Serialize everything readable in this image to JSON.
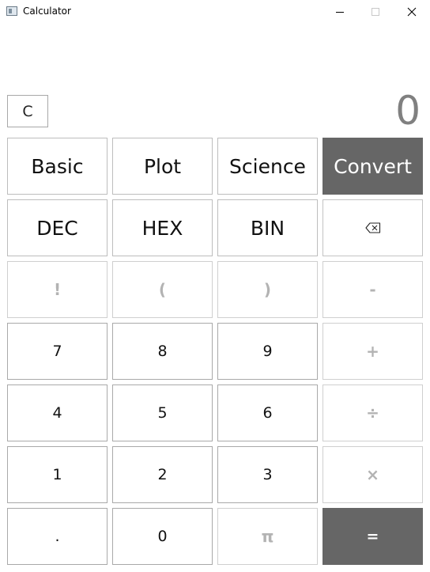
{
  "window": {
    "title": "Calculator",
    "icon": "calculator-app-icon",
    "controls": [
      "minimize-icon",
      "maximize-icon",
      "close-icon"
    ]
  },
  "display": {
    "clear_label": "C",
    "value": "0"
  },
  "modes": [
    {
      "label": "Basic",
      "selected": false
    },
    {
      "label": "Plot",
      "selected": false
    },
    {
      "label": "Science",
      "selected": false
    },
    {
      "label": "Convert",
      "selected": true
    }
  ],
  "bases": [
    {
      "label": "DEC"
    },
    {
      "label": "HEX"
    },
    {
      "label": "BIN"
    }
  ],
  "backspace": {
    "icon": "backspace-icon"
  },
  "ops": {
    "factorial": "!",
    "open_paren": "(",
    "close_paren": ")",
    "minus": "-",
    "plus": "+",
    "divide": "÷",
    "multiply": "×",
    "pi": "π",
    "equals": "=",
    "decimal": "."
  },
  "digits": {
    "d7": "7",
    "d8": "8",
    "d9": "9",
    "d4": "4",
    "d5": "5",
    "d6": "6",
    "d1": "1",
    "d2": "2",
    "d3": "3",
    "d0": "0"
  },
  "colors": {
    "accent": "#666666",
    "display_text": "#808080",
    "disabled_text": "#b3b3b3"
  }
}
